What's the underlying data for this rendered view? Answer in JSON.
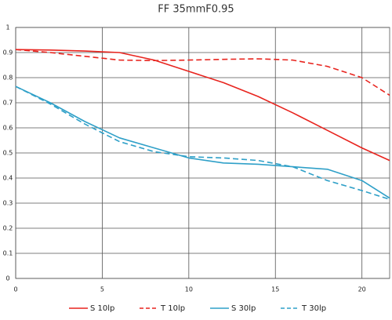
{
  "chart_data": {
    "type": "line",
    "title": "FF 35mmF0.95",
    "x": [
      0,
      2,
      4,
      6,
      8,
      10,
      12,
      14,
      16,
      18,
      20,
      21.6
    ],
    "series": [
      {
        "name": "S 10lp",
        "color": "#e8241e",
        "dash": false,
        "values": [
          0.912,
          0.91,
          0.906,
          0.9,
          0.87,
          0.825,
          0.78,
          0.725,
          0.66,
          0.59,
          0.52,
          0.47
        ]
      },
      {
        "name": "T 10lp",
        "color": "#e8241e",
        "dash": true,
        "values": [
          0.912,
          0.9,
          0.885,
          0.87,
          0.868,
          0.87,
          0.873,
          0.875,
          0.87,
          0.845,
          0.8,
          0.73
        ]
      },
      {
        "name": "S 30lp",
        "color": "#2fa0c8",
        "dash": false,
        "values": [
          0.765,
          0.7,
          0.625,
          0.56,
          0.52,
          0.48,
          0.46,
          0.455,
          0.445,
          0.435,
          0.39,
          0.32
        ]
      },
      {
        "name": "T 30lp",
        "color": "#2fa0c8",
        "dash": true,
        "values": [
          0.765,
          0.695,
          0.615,
          0.545,
          0.505,
          0.485,
          0.48,
          0.47,
          0.445,
          0.39,
          0.35,
          0.315
        ]
      }
    ],
    "xlim": [
      0,
      21.6
    ],
    "xticks": [
      0,
      5,
      10,
      15,
      20
    ],
    "ylim": [
      0,
      1
    ],
    "yticks": [
      0,
      0.1,
      0.2,
      0.3,
      0.4,
      0.5,
      0.6,
      0.7,
      0.8,
      0.9,
      1
    ],
    "grid": true
  }
}
